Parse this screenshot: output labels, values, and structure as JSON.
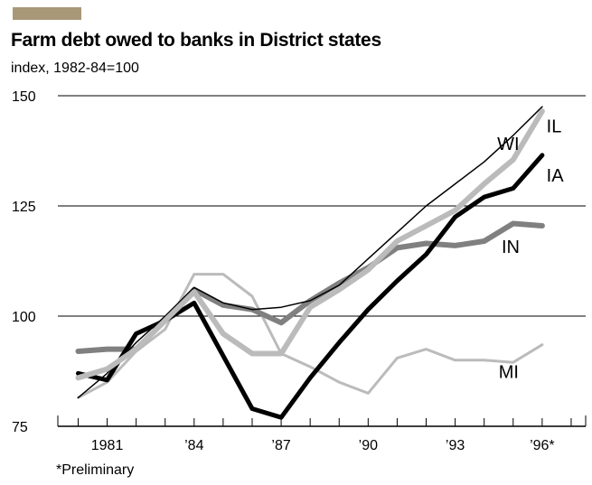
{
  "accent_color": "#a89878",
  "title": "Farm debt owed to banks in District states",
  "subtitle": "index, 1982-84=100",
  "footnote": "*Preliminary",
  "chart_data": {
    "type": "line",
    "title": "Farm debt owed to banks in District states",
    "ylabel": "index, 1982-84=100",
    "xlabel": "",
    "xlim": [
      1979.3,
      1997.5
    ],
    "ylim": [
      75,
      150
    ],
    "yticks": [
      75,
      100,
      125,
      150
    ],
    "xticks": [
      {
        "x": 1981,
        "label": "1981"
      },
      {
        "x": 1984,
        "label": "’84"
      },
      {
        "x": 1987,
        "label": "’87"
      },
      {
        "x": 1990,
        "label": "’90"
      },
      {
        "x": 1993,
        "label": "’93"
      },
      {
        "x": 1996,
        "label": "’96*"
      }
    ],
    "grid": "horizontal",
    "legend": "direct labels at line ends",
    "series": [
      {
        "name": "MI",
        "color": "#bbbbbb",
        "width": 3,
        "x": [
          1980,
          1981,
          1982,
          1983,
          1984,
          1985,
          1986,
          1987,
          1988,
          1989,
          1990,
          1991,
          1992,
          1993,
          1994,
          1995,
          1996
        ],
        "y": [
          81.5,
          85,
          92,
          97,
          109.5,
          109.5,
          104.5,
          91.5,
          88.5,
          85,
          82.5,
          90.5,
          92.5,
          90,
          90,
          89.5,
          93.5
        ]
      },
      {
        "name": "IN",
        "color": "#808080",
        "width": 6,
        "x": [
          1980,
          1981,
          1982,
          1983,
          1984,
          1985,
          1986,
          1987,
          1988,
          1989,
          1990,
          1991,
          1992,
          1993,
          1994,
          1995,
          1996
        ],
        "y": [
          92,
          92.5,
          92.5,
          99,
          106,
          102.5,
          101.5,
          98.5,
          103.5,
          107.5,
          111,
          115.5,
          116.5,
          116,
          117,
          121,
          120.5
        ]
      },
      {
        "name": "IA",
        "color": "#000000",
        "width": 5,
        "x": [
          1980,
          1981,
          1982,
          1983,
          1984,
          1985,
          1986,
          1987,
          1988,
          1989,
          1990,
          1991,
          1992,
          1993,
          1994,
          1995,
          1996
        ],
        "y": [
          87,
          85.5,
          96,
          99,
          103,
          91,
          79,
          77,
          86,
          94,
          101.5,
          108,
          114,
          122.5,
          127,
          129,
          136.5
        ]
      },
      {
        "name": "WI",
        "color": "#000000",
        "width": 1.5,
        "x": [
          1980,
          1981,
          1982,
          1983,
          1984,
          1985,
          1986,
          1987,
          1988,
          1989,
          1990,
          1991,
          1992,
          1993,
          1994,
          1995,
          1996
        ],
        "y": [
          81.5,
          87,
          94,
          100,
          106.5,
          103,
          101.5,
          102,
          103.5,
          107,
          113,
          119,
          125,
          130,
          135,
          141,
          147.5
        ]
      },
      {
        "name": "IL",
        "color": "#bbbbbb",
        "width": 6,
        "x": [
          1980,
          1981,
          1982,
          1983,
          1984,
          1985,
          1986,
          1987,
          1988,
          1989,
          1990,
          1991,
          1992,
          1993,
          1994,
          1995,
          1996
        ],
        "y": [
          86,
          88,
          92.5,
          99,
          105.5,
          96,
          91.5,
          91.5,
          102,
          106,
          110.5,
          117,
          120.5,
          124,
          130,
          135.5,
          146.5
        ]
      }
    ],
    "labels": [
      {
        "text": "WI",
        "x": 1994.45,
        "y": 137.7
      },
      {
        "text": "IL",
        "x": 1996.15,
        "y": 141.7
      },
      {
        "text": "IA",
        "x": 1996.15,
        "y": 130.5
      },
      {
        "text": "IN",
        "x": 1994.6,
        "y": 114.3
      },
      {
        "text": "MI",
        "x": 1994.5,
        "y": 86.0
      }
    ]
  }
}
